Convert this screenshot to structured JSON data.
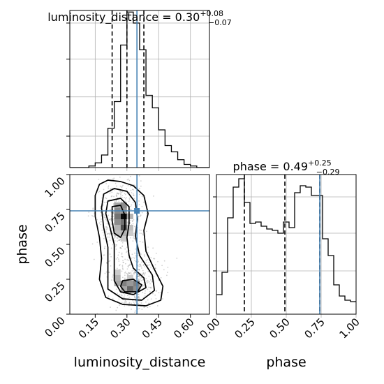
{
  "chart_data": [
    {
      "panel": "luminosity_distance marginal",
      "type": "histogram",
      "title": "luminosity_distance = 0.30",
      "title_parts": {
        "label": "luminosity_distance = 0.30",
        "upper": "+0.08",
        "lower": "−0.07"
      },
      "xlim": [
        0.03,
        0.69
      ],
      "ylim": [
        0,
        1.0
      ],
      "x": [
        0.03,
        0.06,
        0.09,
        0.12,
        0.15,
        0.18,
        0.21,
        0.24,
        0.27,
        0.3,
        0.33,
        0.36,
        0.39,
        0.42,
        0.45,
        0.48,
        0.51,
        0.54,
        0.57,
        0.6,
        0.63,
        0.66,
        0.69
      ],
      "values": [
        0,
        0,
        0,
        0.01,
        0.03,
        0.08,
        0.25,
        0.42,
        0.78,
        0.99,
        0.92,
        0.75,
        0.46,
        0.38,
        0.24,
        0.14,
        0.1,
        0.05,
        0.02,
        0.01,
        0,
        0
      ],
      "quantile_lines": [
        0.23,
        0.3,
        0.38
      ],
      "truth": 0.3473,
      "grid": true,
      "ytick_marks": [
        0.2,
        0.45,
        0.69,
        0.92
      ]
    },
    {
      "panel": "phase marginal",
      "type": "histogram",
      "title": "phase = 0.49",
      "title_parts": {
        "label": "phase = 0.49",
        "upper": "+0.25",
        "lower": "−0.29"
      },
      "xlim": [
        0,
        1.0
      ],
      "ylim": [
        0,
        1.0
      ],
      "x": [
        0,
        0.04,
        0.08,
        0.12,
        0.16,
        0.2,
        0.24,
        0.28,
        0.32,
        0.36,
        0.4,
        0.44,
        0.48,
        0.52,
        0.56,
        0.6,
        0.64,
        0.68,
        0.72,
        0.76,
        0.8,
        0.84,
        0.88,
        0.92,
        0.96,
        1.0
      ],
      "values": [
        0.14,
        0.3,
        0.69,
        0.91,
        0.97,
        0.8,
        0.65,
        0.66,
        0.63,
        0.61,
        0.6,
        0.58,
        0.66,
        0.62,
        0.87,
        0.92,
        0.91,
        0.85,
        0.85,
        0.54,
        0.42,
        0.21,
        0.13,
        0.1,
        0.09
      ],
      "quantile_lines": [
        0.2,
        0.49,
        0.74
      ],
      "truth": 0.74,
      "grid": true,
      "ytick_marks": [
        0.31,
        0.58,
        0.84
      ]
    },
    {
      "panel": "2D histogram",
      "type": "heatmap",
      "xlabel": "luminosity_distance",
      "ylabel": "phase",
      "xlim": [
        0.03,
        0.69
      ],
      "ylim": [
        0,
        1.0
      ],
      "xticks": [
        "0.15",
        "0.30",
        "0.45",
        "0.60"
      ],
      "xtick_values": [
        0.15,
        0.3,
        0.45,
        0.6
      ],
      "yticks": [
        "0.00",
        "0.25",
        "0.50",
        "0.75",
        "1.00"
      ],
      "ytick_values": [
        0.0,
        0.25,
        0.5,
        0.75,
        1.0
      ],
      "truth": {
        "x": 0.3473,
        "y": 0.74
      },
      "cells": [
        {
          "x": 0.24,
          "y": 0.76,
          "w": 0.03,
          "h": 0.04,
          "v": 0.35
        },
        {
          "x": 0.27,
          "y": 0.76,
          "w": 0.03,
          "h": 0.04,
          "v": 0.45
        },
        {
          "x": 0.24,
          "y": 0.72,
          "w": 0.03,
          "h": 0.04,
          "v": 0.45
        },
        {
          "x": 0.27,
          "y": 0.72,
          "w": 0.03,
          "h": 0.04,
          "v": 0.4
        },
        {
          "x": 0.27,
          "y": 0.68,
          "w": 0.03,
          "h": 0.04,
          "v": 0.95
        },
        {
          "x": 0.24,
          "y": 0.68,
          "w": 0.03,
          "h": 0.04,
          "v": 0.55
        },
        {
          "x": 0.3,
          "y": 0.68,
          "w": 0.03,
          "h": 0.04,
          "v": 0.3
        },
        {
          "x": 0.24,
          "y": 0.64,
          "w": 0.03,
          "h": 0.04,
          "v": 0.45
        },
        {
          "x": 0.27,
          "y": 0.64,
          "w": 0.03,
          "h": 0.04,
          "v": 0.55
        },
        {
          "x": 0.27,
          "y": 0.6,
          "w": 0.03,
          "h": 0.04,
          "v": 0.7
        },
        {
          "x": 0.24,
          "y": 0.6,
          "w": 0.03,
          "h": 0.04,
          "v": 0.3
        },
        {
          "x": 0.3,
          "y": 0.6,
          "w": 0.03,
          "h": 0.04,
          "v": 0.25
        },
        {
          "x": 0.27,
          "y": 0.56,
          "w": 0.03,
          "h": 0.04,
          "v": 0.3
        },
        {
          "x": 0.24,
          "y": 0.56,
          "w": 0.03,
          "h": 0.04,
          "v": 0.25
        },
        {
          "x": 0.27,
          "y": 0.52,
          "w": 0.03,
          "h": 0.04,
          "v": 0.2
        },
        {
          "x": 0.3,
          "y": 0.56,
          "w": 0.03,
          "h": 0.04,
          "v": 0.2
        },
        {
          "x": 0.24,
          "y": 0.2,
          "w": 0.03,
          "h": 0.04,
          "v": 0.35
        },
        {
          "x": 0.24,
          "y": 0.24,
          "w": 0.03,
          "h": 0.04,
          "v": 0.3
        },
        {
          "x": 0.27,
          "y": 0.2,
          "w": 0.03,
          "h": 0.04,
          "v": 0.5
        },
        {
          "x": 0.3,
          "y": 0.16,
          "w": 0.03,
          "h": 0.04,
          "v": 0.6
        },
        {
          "x": 0.3,
          "y": 0.2,
          "w": 0.03,
          "h": 0.04,
          "v": 0.4
        },
        {
          "x": 0.33,
          "y": 0.16,
          "w": 0.03,
          "h": 0.04,
          "v": 0.45
        },
        {
          "x": 0.33,
          "y": 0.2,
          "w": 0.03,
          "h": 0.04,
          "v": 0.5
        },
        {
          "x": 0.27,
          "y": 0.16,
          "w": 0.03,
          "h": 0.04,
          "v": 0.35
        },
        {
          "x": 0.24,
          "y": 0.28,
          "w": 0.03,
          "h": 0.04,
          "v": 0.2
        },
        {
          "x": 0.3,
          "y": 0.24,
          "w": 0.03,
          "h": 0.04,
          "v": 0.2
        }
      ],
      "contours": [
        [
          [
            0.17,
            0.93
          ],
          [
            0.21,
            0.96
          ],
          [
            0.27,
            0.95
          ],
          [
            0.33,
            0.92
          ],
          [
            0.38,
            0.85
          ],
          [
            0.4,
            0.72
          ],
          [
            0.38,
            0.6
          ],
          [
            0.39,
            0.45
          ],
          [
            0.43,
            0.32
          ],
          [
            0.47,
            0.2
          ],
          [
            0.46,
            0.1
          ],
          [
            0.39,
            0.06
          ],
          [
            0.28,
            0.07
          ],
          [
            0.2,
            0.12
          ],
          [
            0.17,
            0.25
          ],
          [
            0.18,
            0.4
          ],
          [
            0.17,
            0.55
          ],
          [
            0.15,
            0.7
          ],
          [
            0.15,
            0.85
          ],
          [
            0.17,
            0.93
          ]
        ],
        [
          [
            0.19,
            0.86
          ],
          [
            0.24,
            0.9
          ],
          [
            0.3,
            0.88
          ],
          [
            0.34,
            0.8
          ],
          [
            0.35,
            0.68
          ],
          [
            0.34,
            0.56
          ],
          [
            0.36,
            0.42
          ],
          [
            0.42,
            0.28
          ],
          [
            0.43,
            0.17
          ],
          [
            0.37,
            0.1
          ],
          [
            0.28,
            0.11
          ],
          [
            0.21,
            0.18
          ],
          [
            0.21,
            0.32
          ],
          [
            0.21,
            0.48
          ],
          [
            0.19,
            0.62
          ],
          [
            0.18,
            0.76
          ],
          [
            0.19,
            0.86
          ]
        ],
        [
          [
            0.21,
            0.81
          ],
          [
            0.27,
            0.83
          ],
          [
            0.31,
            0.77
          ],
          [
            0.31,
            0.65
          ],
          [
            0.3,
            0.55
          ],
          [
            0.31,
            0.42
          ],
          [
            0.33,
            0.33
          ],
          [
            0.38,
            0.26
          ],
          [
            0.39,
            0.19
          ],
          [
            0.33,
            0.14
          ],
          [
            0.27,
            0.16
          ],
          [
            0.24,
            0.24
          ],
          [
            0.24,
            0.36
          ],
          [
            0.24,
            0.5
          ],
          [
            0.22,
            0.62
          ],
          [
            0.2,
            0.72
          ],
          [
            0.21,
            0.81
          ]
        ],
        [
          [
            0.23,
            0.77
          ],
          [
            0.27,
            0.78
          ],
          [
            0.29,
            0.71
          ],
          [
            0.29,
            0.61
          ],
          [
            0.27,
            0.55
          ],
          [
            0.24,
            0.58
          ],
          [
            0.23,
            0.67
          ],
          [
            0.23,
            0.77
          ]
        ],
        [
          [
            0.28,
            0.24
          ],
          [
            0.33,
            0.25
          ],
          [
            0.37,
            0.21
          ],
          [
            0.35,
            0.16
          ],
          [
            0.29,
            0.16
          ],
          [
            0.27,
            0.2
          ],
          [
            0.28,
            0.24
          ]
        ]
      ]
    }
  ]
}
